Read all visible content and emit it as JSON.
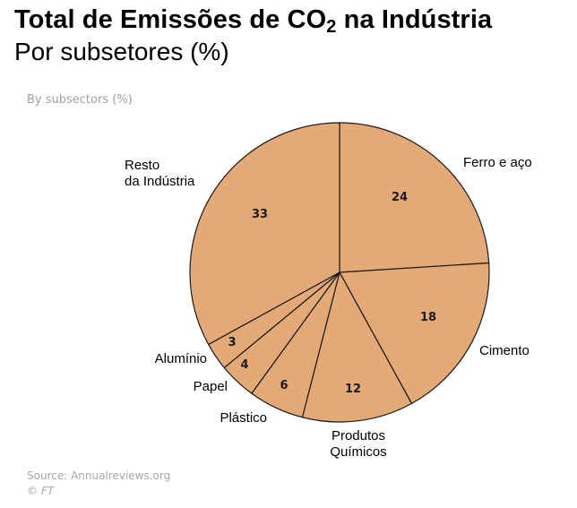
{
  "header": {
    "title_main": "Total de Emissões de CO",
    "title_sub": "2",
    "title_end": " na Indústria",
    "subtitle": "Por subsetores (%)"
  },
  "chart_inner_subtitle": "By subsectors (%)",
  "footer": {
    "source": "Source: Annualreviews.org",
    "credit": "© FT"
  },
  "colors": {
    "slice_fill": "#e3a977",
    "slice_stroke": "#1a1a1a"
  },
  "chart_data": {
    "type": "pie",
    "start": "12 o'clock",
    "direction": "clockwise",
    "slices": [
      {
        "label": [
          "Ferro e aço"
        ],
        "value": 24
      },
      {
        "label": [
          "Cimento"
        ],
        "value": 18
      },
      {
        "label": [
          "Produtos",
          "Químicos"
        ],
        "value": 12
      },
      {
        "label": [
          "Plástico"
        ],
        "value": 6
      },
      {
        "label": [
          "Papel"
        ],
        "value": 4
      },
      {
        "label": [
          "Alumínio"
        ],
        "value": 3
      },
      {
        "label": [
          "Resto",
          "da Indústria"
        ],
        "value": 33
      }
    ]
  }
}
